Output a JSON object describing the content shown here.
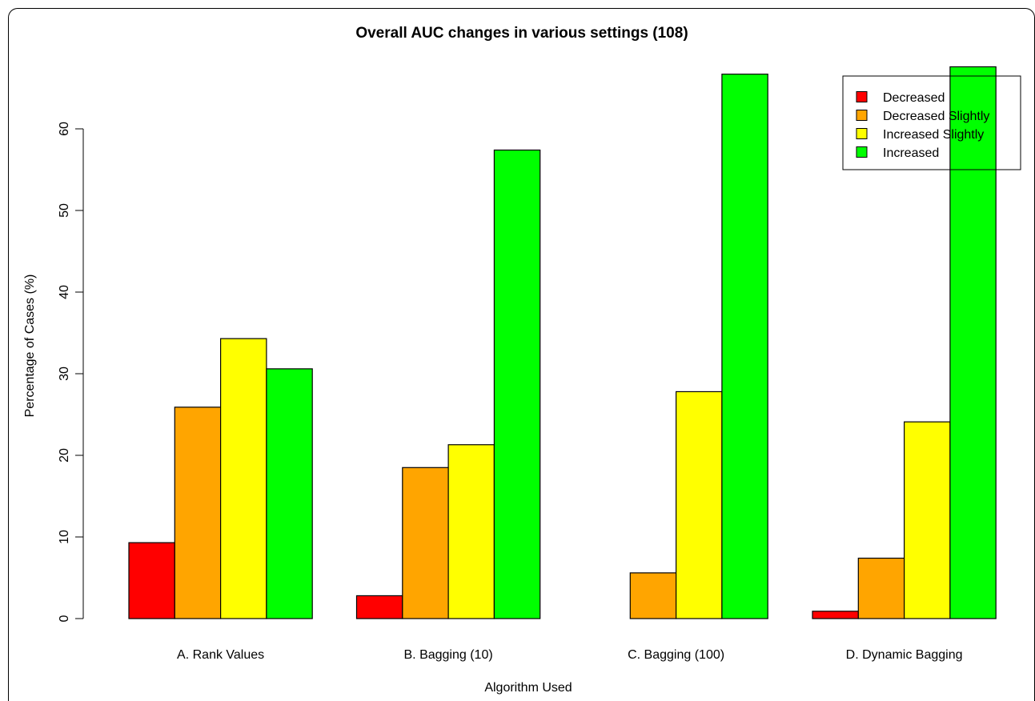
{
  "chart_data": {
    "type": "bar",
    "title": "Overall AUC changes in various settings (108)",
    "xlabel": "Algorithm Used",
    "ylabel": "Percentage of Cases (%)",
    "ylim": [
      0,
      68
    ],
    "yticks": [
      0,
      10,
      20,
      30,
      40,
      50,
      60
    ],
    "categories": [
      "A. Rank Values",
      "B. Bagging (10)",
      "C. Bagging (100)",
      "D. Dynamic Bagging"
    ],
    "series": [
      {
        "name": "Decreased",
        "color": "#ff0000",
        "values": [
          9.3,
          2.8,
          0.0,
          0.9
        ]
      },
      {
        "name": "Decreased Slightly",
        "color": "#ffa500",
        "values": [
          25.9,
          18.5,
          5.6,
          7.4
        ]
      },
      {
        "name": "Increased Slightly",
        "color": "#ffff00",
        "values": [
          34.3,
          21.3,
          27.8,
          24.1
        ]
      },
      {
        "name": "Increased",
        "color": "#00ff00",
        "values": [
          30.6,
          57.4,
          66.7,
          67.6
        ]
      }
    ],
    "legend": "top-right",
    "grid": false
  }
}
